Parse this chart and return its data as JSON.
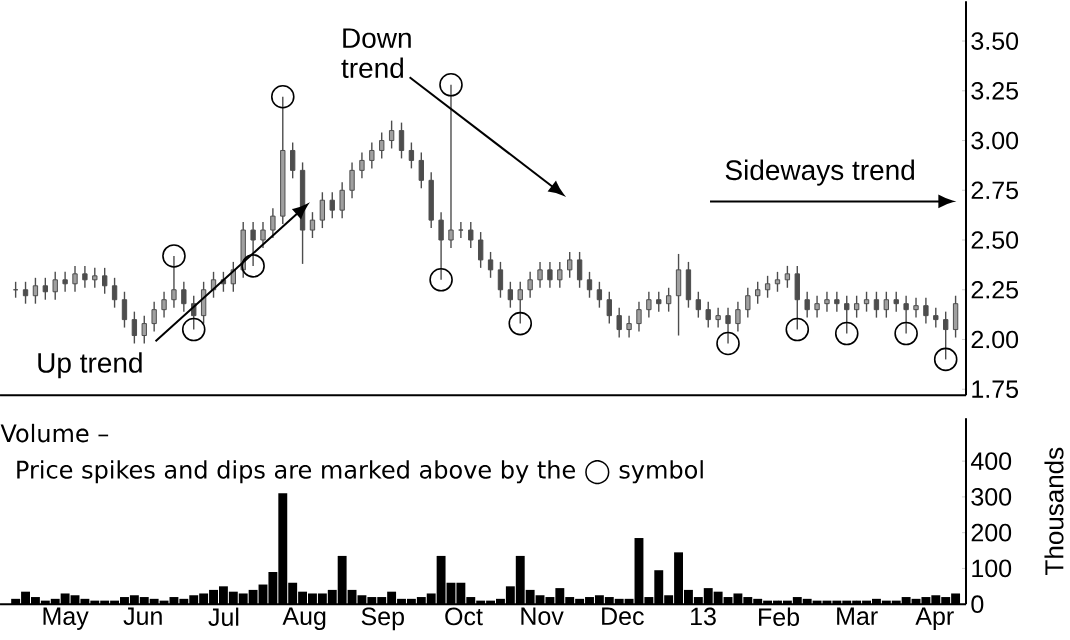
{
  "chart_data": [
    {
      "type": "candlestick",
      "color": "#4d4d4d",
      "x": [
        "2012-04-27T00:00",
        "2012-04-30T19:12",
        "2012-05-04T14:24",
        "2012-05-08T09:36",
        "2012-05-12T04:48",
        "2012-05-16T00:00",
        "2012-05-19T19:12",
        "2012-05-23T14:24",
        "2012-05-27T09:36",
        "2012-05-31T04:48",
        "2012-06-04T00:00",
        "2012-06-07T19:12",
        "2012-06-11T14:24",
        "2012-06-15T09:36",
        "2012-06-19T04:48",
        "2012-06-23T00:00",
        "2012-06-26T19:12",
        "2012-06-30T14:24",
        "2012-07-04T09:36",
        "2012-07-08T04:48",
        "2012-07-12T00:00",
        "2012-07-15T19:12",
        "2012-07-19T14:24",
        "2012-07-23T09:36",
        "2012-07-27T04:48",
        "2012-07-31T00:00",
        "2012-08-03T19:12",
        "2012-08-07T14:24",
        "2012-08-11T09:36",
        "2012-08-15T04:48",
        "2012-08-19T00:00",
        "2012-08-22T19:12",
        "2012-08-26T14:24",
        "2012-08-30T09:36",
        "2012-09-03T04:48",
        "2012-09-07T00:00",
        "2012-09-10T19:12",
        "2012-09-14T14:24",
        "2012-09-18T09:36",
        "2012-09-22T04:48",
        "2012-09-26T00:00",
        "2012-09-29T19:12",
        "2012-10-03T14:24",
        "2012-10-07T09:36",
        "2012-10-11T04:48",
        "2012-10-15T00:00",
        "2012-10-18T19:12",
        "2012-10-22T14:24",
        "2012-10-26T09:36",
        "2012-10-30T04:48",
        "2012-11-03T00:00",
        "2012-11-06T19:12",
        "2012-11-10T14:24",
        "2012-11-14T09:36",
        "2012-11-18T04:48",
        "2012-11-22T00:00",
        "2012-11-25T19:12",
        "2012-11-29T14:24",
        "2012-12-03T09:36",
        "2012-12-07T04:48",
        "2012-12-11T00:00",
        "2012-12-14T19:12",
        "2012-12-18T14:24",
        "2012-12-22T09:36",
        "2012-12-26T04:48",
        "2012-12-30T00:00",
        "2013-01-02T19:12",
        "2013-01-06T14:24",
        "2013-01-10T09:36",
        "2013-01-14T04:48",
        "2013-01-18T00:00",
        "2013-01-21T19:12",
        "2013-01-25T14:24",
        "2013-01-29T09:36",
        "2013-02-02T04:48",
        "2013-02-06T00:00",
        "2013-02-09T19:12",
        "2013-02-13T14:24",
        "2013-02-17T09:36",
        "2013-02-21T04:48",
        "2013-02-25T00:00",
        "2013-02-28T19:12",
        "2013-03-04T14:24",
        "2013-03-08T09:36",
        "2013-03-12T04:48",
        "2013-03-16T00:00",
        "2013-03-19T19:12",
        "2013-03-23T14:24",
        "2013-03-27T09:36",
        "2013-03-31T04:48",
        "2013-04-04T00:00",
        "2013-04-07T19:12",
        "2013-04-11T14:24",
        "2013-04-15T09:36",
        "2013-04-19T04:48",
        "2013-04-23T00:00"
      ],
      "ohlc": [
        [
          2.25,
          2.29,
          2.21,
          2.25
        ],
        [
          2.25,
          2.29,
          2.18,
          2.22
        ],
        [
          2.22,
          2.31,
          2.18,
          2.27
        ],
        [
          2.27,
          2.31,
          2.2,
          2.24
        ],
        [
          2.24,
          2.34,
          2.2,
          2.3
        ],
        [
          2.3,
          2.34,
          2.24,
          2.28
        ],
        [
          2.28,
          2.37,
          2.24,
          2.33
        ],
        [
          2.33,
          2.37,
          2.26,
          2.3
        ],
        [
          2.3,
          2.36,
          2.26,
          2.32
        ],
        [
          2.32,
          2.36,
          2.23,
          2.27
        ],
        [
          2.27,
          2.31,
          2.16,
          2.2
        ],
        [
          2.2,
          2.24,
          2.06,
          2.1
        ],
        [
          2.1,
          2.14,
          1.98,
          2.02
        ],
        [
          2.02,
          2.12,
          1.98,
          2.08
        ],
        [
          2.08,
          2.19,
          2.04,
          2.15
        ],
        [
          2.15,
          2.24,
          2.11,
          2.2
        ],
        [
          2.2,
          2.42,
          2.16,
          2.25
        ],
        [
          2.25,
          2.29,
          2.14,
          2.18
        ],
        [
          2.18,
          2.22,
          2.05,
          2.12
        ],
        [
          2.12,
          2.29,
          2.08,
          2.25
        ],
        [
          2.25,
          2.34,
          2.21,
          2.3
        ],
        [
          2.3,
          2.34,
          2.24,
          2.28
        ],
        [
          2.28,
          2.39,
          2.24,
          2.35
        ],
        [
          2.35,
          2.59,
          2.31,
          2.55
        ],
        [
          2.55,
          2.59,
          2.37,
          2.5
        ],
        [
          2.5,
          2.59,
          2.46,
          2.55
        ],
        [
          2.55,
          2.66,
          2.51,
          2.62
        ],
        [
          2.62,
          3.22,
          2.58,
          2.95
        ],
        [
          2.95,
          2.99,
          2.81,
          2.85
        ],
        [
          2.85,
          2.89,
          2.38,
          2.55
        ],
        [
          2.55,
          2.64,
          2.51,
          2.6
        ],
        [
          2.6,
          2.74,
          2.56,
          2.7
        ],
        [
          2.7,
          2.74,
          2.61,
          2.65
        ],
        [
          2.65,
          2.79,
          2.61,
          2.75
        ],
        [
          2.75,
          2.89,
          2.71,
          2.85
        ],
        [
          2.85,
          2.94,
          2.81,
          2.9
        ],
        [
          2.9,
          2.99,
          2.86,
          2.95
        ],
        [
          2.95,
          3.04,
          2.91,
          3.0
        ],
        [
          3.0,
          3.1,
          2.96,
          3.05
        ],
        [
          3.05,
          3.09,
          2.91,
          2.95
        ],
        [
          2.95,
          2.99,
          2.86,
          2.9
        ],
        [
          2.9,
          2.94,
          2.76,
          2.8
        ],
        [
          2.8,
          2.84,
          2.56,
          2.6
        ],
        [
          2.6,
          2.64,
          2.3,
          2.5
        ],
        [
          2.5,
          3.28,
          2.46,
          2.55
        ],
        [
          2.55,
          2.59,
          2.51,
          2.55
        ],
        [
          2.55,
          2.59,
          2.46,
          2.5
        ],
        [
          2.5,
          2.54,
          2.36,
          2.4
        ],
        [
          2.4,
          2.44,
          2.31,
          2.35
        ],
        [
          2.35,
          2.39,
          2.21,
          2.25
        ],
        [
          2.25,
          2.29,
          2.16,
          2.2
        ],
        [
          2.2,
          2.29,
          2.08,
          2.25
        ],
        [
          2.25,
          2.34,
          2.21,
          2.3
        ],
        [
          2.3,
          2.39,
          2.26,
          2.35
        ],
        [
          2.35,
          2.39,
          2.26,
          2.3
        ],
        [
          2.3,
          2.39,
          2.26,
          2.35
        ],
        [
          2.35,
          2.44,
          2.31,
          2.4
        ],
        [
          2.4,
          2.44,
          2.26,
          2.3
        ],
        [
          2.3,
          2.34,
          2.21,
          2.25
        ],
        [
          2.25,
          2.29,
          2.16,
          2.2
        ],
        [
          2.2,
          2.24,
          2.08,
          2.12
        ],
        [
          2.12,
          2.16,
          2.01,
          2.05
        ],
        [
          2.05,
          2.12,
          2.01,
          2.08
        ],
        [
          2.08,
          2.19,
          2.04,
          2.15
        ],
        [
          2.15,
          2.24,
          2.11,
          2.2
        ],
        [
          2.2,
          2.24,
          2.14,
          2.18
        ],
        [
          2.18,
          2.26,
          2.14,
          2.22
        ],
        [
          2.22,
          2.43,
          2.02,
          2.35
        ],
        [
          2.35,
          2.39,
          2.16,
          2.2
        ],
        [
          2.2,
          2.24,
          2.11,
          2.15
        ],
        [
          2.15,
          2.19,
          2.06,
          2.1
        ],
        [
          2.1,
          2.16,
          2.06,
          2.12
        ],
        [
          2.12,
          2.16,
          1.98,
          2.08
        ],
        [
          2.08,
          2.19,
          2.04,
          2.15
        ],
        [
          2.15,
          2.26,
          2.11,
          2.22
        ],
        [
          2.22,
          2.29,
          2.18,
          2.25
        ],
        [
          2.25,
          2.32,
          2.21,
          2.28
        ],
        [
          2.28,
          2.34,
          2.24,
          2.3
        ],
        [
          2.3,
          2.37,
          2.26,
          2.33
        ],
        [
          2.33,
          2.37,
          2.05,
          2.2
        ],
        [
          2.2,
          2.24,
          2.11,
          2.15
        ],
        [
          2.15,
          2.22,
          2.11,
          2.18
        ],
        [
          2.18,
          2.24,
          2.14,
          2.2
        ],
        [
          2.2,
          2.24,
          2.14,
          2.18
        ],
        [
          2.18,
          2.22,
          2.03,
          2.15
        ],
        [
          2.15,
          2.22,
          2.11,
          2.18
        ],
        [
          2.18,
          2.24,
          2.14,
          2.2
        ],
        [
          2.2,
          2.24,
          2.11,
          2.15
        ],
        [
          2.15,
          2.24,
          2.11,
          2.2
        ],
        [
          2.2,
          2.24,
          2.14,
          2.18
        ],
        [
          2.18,
          2.22,
          2.03,
          2.15
        ],
        [
          2.15,
          2.21,
          2.11,
          2.17
        ],
        [
          2.17,
          2.21,
          2.08,
          2.12
        ],
        [
          2.12,
          2.16,
          2.06,
          2.1
        ],
        [
          2.1,
          2.14,
          1.9,
          2.05
        ],
        [
          2.05,
          2.22,
          2.01,
          2.18
        ]
      ],
      "series": [
        {
          "type": "scatter",
          "color": "#000000",
          "x": [
            "2012-06-26T19:12",
            "2012-07-04T09:36",
            "2012-07-27T04:48",
            "2012-08-07T14:24",
            "2012-10-07T09:36",
            "2012-10-11T04:48",
            "2012-11-06T19:12",
            "2013-01-25T14:24",
            "2013-02-21T04:48",
            "2013-03-12T04:48",
            "2013-04-04T00:00",
            "2013-04-19T04:48"
          ],
          "values": [
            2.42,
            2.05,
            2.37,
            3.22,
            2.3,
            3.28,
            2.08,
            1.98,
            2.05,
            2.03,
            2.03,
            1.9
          ]
        }
      ],
      "marker": "circle",
      "xlim": [
        "2012-04-21",
        "2013-04-27"
      ],
      "ylim": [
        1.72,
        3.7
      ],
      "yticks": [
        {
          "value": 1.75,
          "label": "1.75"
        },
        {
          "value": 2,
          "label": "2.00"
        },
        {
          "value": 2.25,
          "label": "2.25"
        },
        {
          "value": 2.5,
          "label": "2.50"
        },
        {
          "value": 2.75,
          "label": "2.75"
        },
        {
          "value": 3,
          "label": "3.00"
        },
        {
          "value": 3.25,
          "label": "3.25"
        },
        {
          "value": 3.5,
          "label": "3.50"
        }
      ],
      "tick_labels": "y",
      "annotations": [
        {
          "text": "Up trend",
          "x": "2012-08-18",
          "y": 2.69
        },
        "Down trend",
        "Sideways trend"
      ]
    },
    {
      "type": "bar",
      "color": "#000000",
      "ylabel": "Thousands",
      "x": [
        "2012-04-27T00:00",
        "2012-04-30T19:12",
        "2012-05-04T14:24",
        "2012-05-08T09:36",
        "2012-05-12T04:48",
        "2012-05-16T00:00",
        "2012-05-19T19:12",
        "2012-05-23T14:24",
        "2012-05-27T09:36",
        "2012-05-31T04:48",
        "2012-06-04T00:00",
        "2012-06-07T19:12",
        "2012-06-11T14:24",
        "2012-06-15T09:36",
        "2012-06-19T04:48",
        "2012-06-23T00:00",
        "2012-06-26T19:12",
        "2012-06-30T14:24",
        "2012-07-04T09:36",
        "2012-07-08T04:48",
        "2012-07-12T00:00",
        "2012-07-15T19:12",
        "2012-07-19T14:24",
        "2012-07-23T09:36",
        "2012-07-27T04:48",
        "2012-07-31T00:00",
        "2012-08-03T19:12",
        "2012-08-07T14:24",
        "2012-08-11T09:36",
        "2012-08-15T04:48",
        "2012-08-19T00:00",
        "2012-08-22T19:12",
        "2012-08-26T14:24",
        "2012-08-30T09:36",
        "2012-09-03T04:48",
        "2012-09-07T00:00",
        "2012-09-10T19:12",
        "2012-09-14T14:24",
        "2012-09-18T09:36",
        "2012-09-22T04:48",
        "2012-09-26T00:00",
        "2012-09-29T19:12",
        "2012-10-03T14:24",
        "2012-10-07T09:36",
        "2012-10-11T04:48",
        "2012-10-15T00:00",
        "2012-10-18T19:12",
        "2012-10-22T14:24",
        "2012-10-26T09:36",
        "2012-10-30T04:48",
        "2012-11-03T00:00",
        "2012-11-06T19:12",
        "2012-11-10T14:24",
        "2012-11-14T09:36",
        "2012-11-18T04:48",
        "2012-11-22T00:00",
        "2012-11-25T19:12",
        "2012-11-29T14:24",
        "2012-12-03T09:36",
        "2012-12-07T04:48",
        "2012-12-11T00:00",
        "2012-12-14T19:12",
        "2012-12-18T14:24",
        "2012-12-22T09:36",
        "2012-12-26T04:48",
        "2012-12-30T00:00",
        "2013-01-02T19:12",
        "2013-01-06T14:24",
        "2013-01-10T09:36",
        "2013-01-14T04:48",
        "2013-01-18T00:00",
        "2013-01-21T19:12",
        "2013-01-25T14:24",
        "2013-01-29T09:36",
        "2013-02-02T04:48",
        "2013-02-06T00:00",
        "2013-02-09T19:12",
        "2013-02-13T14:24",
        "2013-02-17T09:36",
        "2013-02-21T04:48",
        "2013-02-25T00:00",
        "2013-02-28T19:12",
        "2013-03-04T14:24",
        "2013-03-08T09:36",
        "2013-03-12T04:48",
        "2013-03-16T00:00",
        "2013-03-19T19:12",
        "2013-03-23T14:24",
        "2013-03-27T09:36",
        "2013-03-31T04:48",
        "2013-04-04T00:00",
        "2013-04-07T19:12",
        "2013-04-11T14:24",
        "2013-04-15T09:36",
        "2013-04-19T04:48",
        "2013-04-23T00:00"
      ],
      "values": [
        15,
        35,
        20,
        10,
        15,
        30,
        25,
        15,
        10,
        10,
        10,
        20,
        25,
        20,
        15,
        10,
        20,
        15,
        25,
        30,
        40,
        50,
        35,
        30,
        40,
        55,
        90,
        310,
        60,
        35,
        30,
        30,
        40,
        135,
        40,
        25,
        20,
        20,
        35,
        15,
        15,
        20,
        30,
        135,
        60,
        60,
        20,
        10,
        10,
        15,
        50,
        135,
        40,
        25,
        20,
        45,
        20,
        15,
        20,
        25,
        20,
        15,
        15,
        185,
        20,
        95,
        25,
        145,
        40,
        20,
        45,
        35,
        20,
        30,
        20,
        15,
        10,
        10,
        10,
        20,
        15,
        10,
        10,
        10,
        10,
        10,
        10,
        15,
        10,
        10,
        20,
        15,
        20,
        25,
        20,
        30
      ],
      "xlim": [
        "2012-04-21",
        "2013-04-27"
      ],
      "ylim": [
        0,
        520
      ],
      "yticks": [
        0,
        100,
        200,
        300,
        400
      ],
      "xticks": [
        {
          "value": "2012-05-16",
          "label": "May"
        },
        {
          "value": "2012-06-15",
          "label": "Jun"
        },
        {
          "value": "2012-07-16",
          "label": "Jul"
        },
        {
          "value": "2012-08-16",
          "label": "Aug"
        },
        {
          "value": "2012-09-15",
          "label": "Sep"
        },
        {
          "value": "2012-10-16",
          "label": "Oct"
        },
        {
          "value": "2012-11-15",
          "label": "Nov"
        },
        {
          "value": "2012-12-16",
          "label": "Dec"
        },
        {
          "value": "2013-01-16",
          "label": "13"
        },
        {
          "value": "2013-02-14",
          "label": "Feb"
        },
        {
          "value": "2013-03-16",
          "label": "Mar"
        },
        {
          "value": "2013-04-15",
          "label": "Apr"
        }
      ],
      "annotations": [
        "Volume –",
        "Price spikes and dips are marked above by the ◯ symbol"
      ]
    }
  ]
}
